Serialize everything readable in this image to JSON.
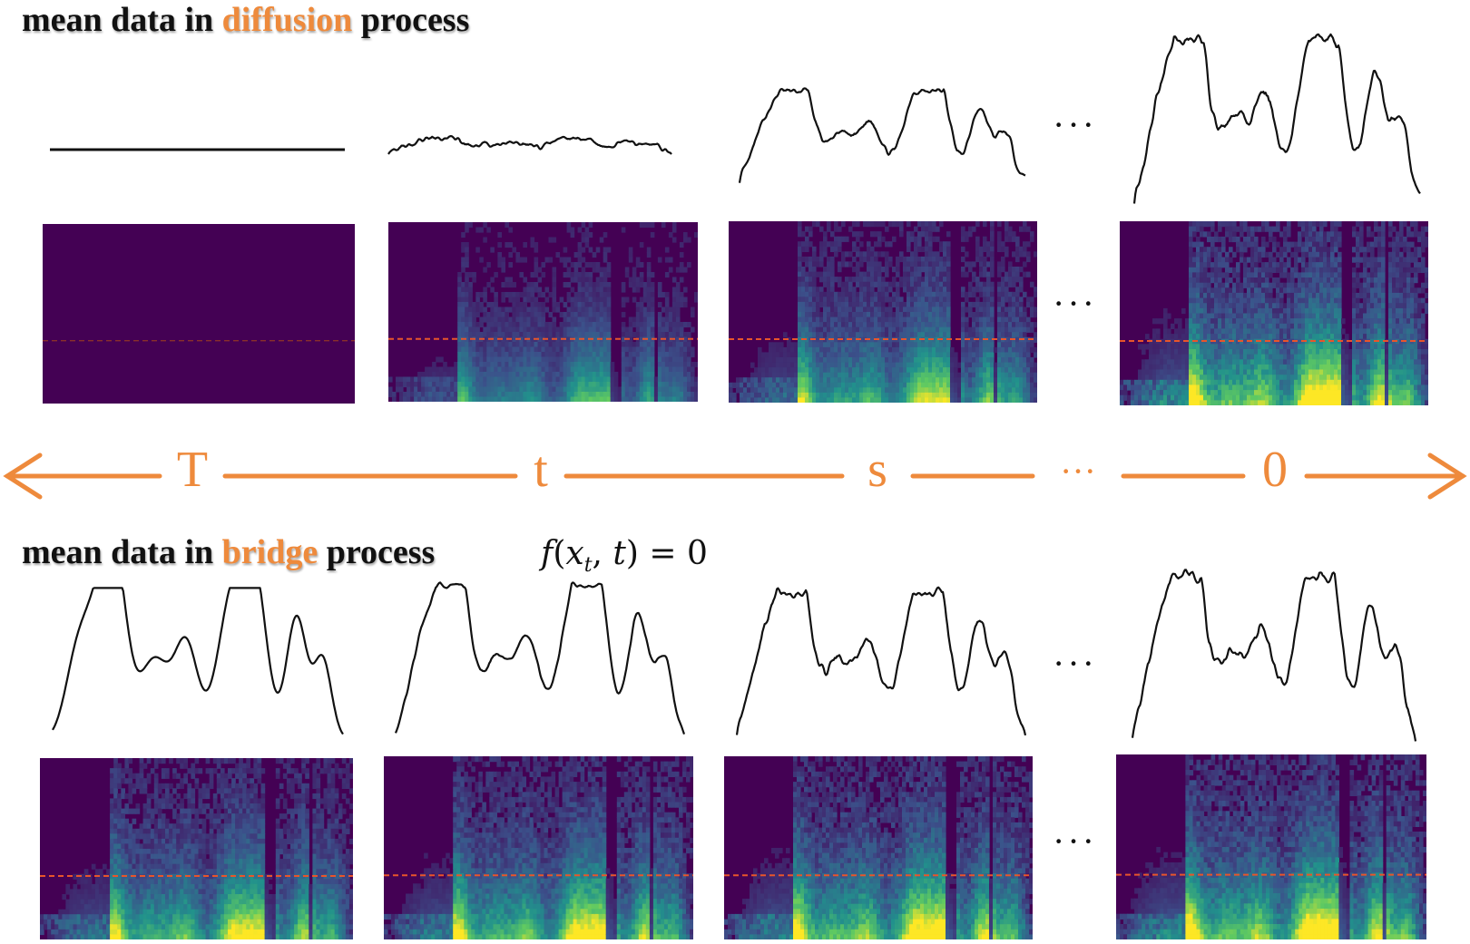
{
  "top": {
    "heading_before": "mean data in ",
    "heading_accent": "diffusion",
    "heading_after": " process",
    "ellipsis": "···"
  },
  "bottom": {
    "heading_before": "mean data in ",
    "heading_accent": "bridge",
    "heading_after": " process",
    "equation": {
      "f": "f",
      "x": "x",
      "sub": "t",
      "t": "t",
      "rhs": "0"
    },
    "ellipsis": "···"
  },
  "timeline": {
    "labels": [
      "T",
      "t",
      "s",
      "···",
      "0"
    ],
    "color": "#ee8a3c"
  },
  "colors": {
    "accent": "#ee8a3c",
    "spectrogram_base": "#440154",
    "spectrogram_mid": "#31688e",
    "spectrogram_high": "#35b779",
    "spectrogram_peak": "#fde725",
    "threshold_line": "#e8552b"
  },
  "visuals": {
    "waveform_icon": "audio-waveform-icon",
    "spectrogram_icon": "mel-spectrogram-icon"
  }
}
